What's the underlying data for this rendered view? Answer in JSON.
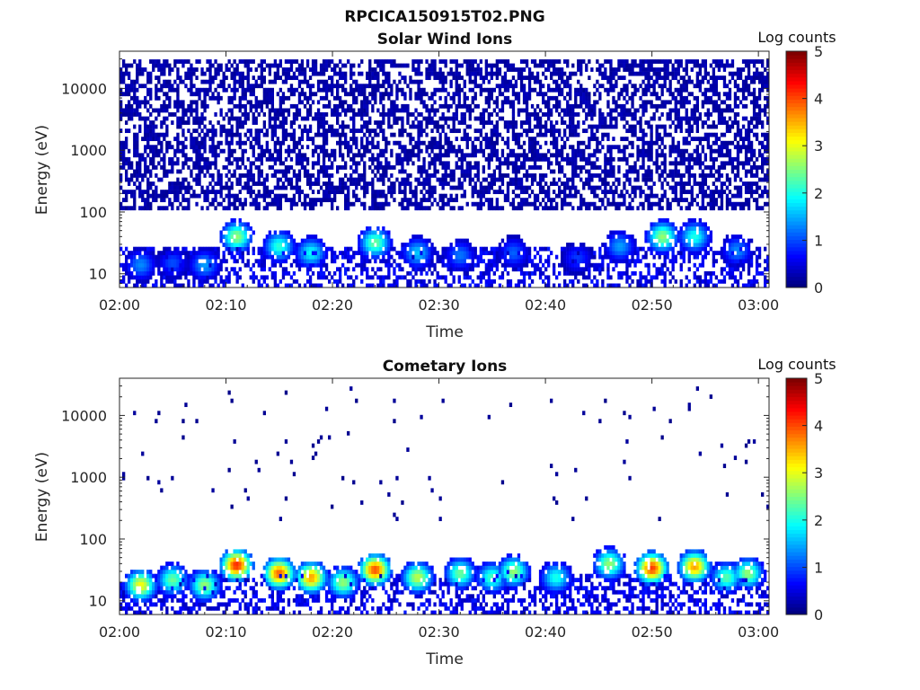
{
  "figure": {
    "title": "RPCICA150915T02.PNG"
  },
  "colorbar": {
    "label": "Log counts",
    "range": [
      0,
      5
    ],
    "ticks": [
      "0",
      "1",
      "2",
      "3",
      "4",
      "5"
    ]
  },
  "chart_data": [
    {
      "type": "heatmap",
      "title": "Solar Wind Ions",
      "xlabel": "Time",
      "ylabel": "Energy (eV)",
      "yscale": "log",
      "xlim": [
        "02:00",
        "03:01"
      ],
      "ylim": [
        6,
        40000
      ],
      "x_ticks": [
        "02:00",
        "02:10",
        "02:20",
        "02:30",
        "02:40",
        "02:50",
        "03:00"
      ],
      "y_ticks": [
        "10",
        "100",
        "1000",
        "10000"
      ],
      "colorbar_label": "Log counts",
      "clim": [
        0,
        5
      ],
      "sparse_background": {
        "energy_range_eV": [
          100,
          30000
        ],
        "log_counts": 0.2,
        "fill_fraction": 0.55
      },
      "bursts": [
        {
          "time": "02:02",
          "energy_eV": 14,
          "log_counts": 1.3
        },
        {
          "time": "02:05",
          "energy_eV": 15,
          "log_counts": 1.0
        },
        {
          "time": "02:08",
          "energy_eV": 14,
          "log_counts": 1.4
        },
        {
          "time": "02:11",
          "energy_eV": 40,
          "log_counts": 2.6
        },
        {
          "time": "02:15",
          "energy_eV": 28,
          "log_counts": 2.1
        },
        {
          "time": "02:18",
          "energy_eV": 22,
          "log_counts": 1.9
        },
        {
          "time": "02:24",
          "energy_eV": 32,
          "log_counts": 2.4
        },
        {
          "time": "02:28",
          "energy_eV": 22,
          "log_counts": 1.6
        },
        {
          "time": "02:32",
          "energy_eV": 20,
          "log_counts": 1.2
        },
        {
          "time": "02:37",
          "energy_eV": 22,
          "log_counts": 1.1
        },
        {
          "time": "02:43",
          "energy_eV": 18,
          "log_counts": 0.9
        },
        {
          "time": "02:47",
          "energy_eV": 28,
          "log_counts": 1.4
        },
        {
          "time": "02:51",
          "energy_eV": 40,
          "log_counts": 2.6
        },
        {
          "time": "02:54",
          "energy_eV": 40,
          "log_counts": 2.0
        },
        {
          "time": "02:58",
          "energy_eV": 24,
          "log_counts": 1.3
        }
      ]
    },
    {
      "type": "heatmap",
      "title": "Cometary Ions",
      "xlabel": "Time",
      "ylabel": "Energy (eV)",
      "yscale": "log",
      "xlim": [
        "02:00",
        "03:01"
      ],
      "ylim": [
        6,
        40000
      ],
      "x_ticks": [
        "02:00",
        "02:10",
        "02:20",
        "02:30",
        "02:40",
        "02:50",
        "03:00"
      ],
      "y_ticks": [
        "10",
        "100",
        "1000",
        "10000"
      ],
      "colorbar_label": "Log counts",
      "clim": [
        0,
        5
      ],
      "sparse_background": {
        "energy_range_eV": [
          200,
          30000
        ],
        "log_counts": 0.1,
        "fill_fraction": 0.012
      },
      "bursts": [
        {
          "time": "02:02",
          "energy_eV": 18,
          "log_counts": 3.1
        },
        {
          "time": "02:05",
          "energy_eV": 22,
          "log_counts": 2.4
        },
        {
          "time": "02:08",
          "energy_eV": 18,
          "log_counts": 2.6
        },
        {
          "time": "02:11",
          "energy_eV": 38,
          "log_counts": 4.2
        },
        {
          "time": "02:15",
          "energy_eV": 28,
          "log_counts": 3.9
        },
        {
          "time": "02:18",
          "energy_eV": 24,
          "log_counts": 3.6
        },
        {
          "time": "02:21",
          "energy_eV": 20,
          "log_counts": 2.6
        },
        {
          "time": "02:24",
          "energy_eV": 32,
          "log_counts": 4.0
        },
        {
          "time": "02:28",
          "energy_eV": 24,
          "log_counts": 2.8
        },
        {
          "time": "02:32",
          "energy_eV": 28,
          "log_counts": 2.4
        },
        {
          "time": "02:35",
          "energy_eV": 24,
          "log_counts": 2.2
        },
        {
          "time": "02:37",
          "energy_eV": 30,
          "log_counts": 2.6
        },
        {
          "time": "02:41",
          "energy_eV": 24,
          "log_counts": 2.0
        },
        {
          "time": "02:46",
          "energy_eV": 40,
          "log_counts": 2.6
        },
        {
          "time": "02:50",
          "energy_eV": 34,
          "log_counts": 4.1
        },
        {
          "time": "02:54",
          "energy_eV": 36,
          "log_counts": 3.6
        },
        {
          "time": "02:57",
          "energy_eV": 24,
          "log_counts": 2.3
        },
        {
          "time": "02:59",
          "energy_eV": 28,
          "log_counts": 2.6
        }
      ]
    }
  ]
}
